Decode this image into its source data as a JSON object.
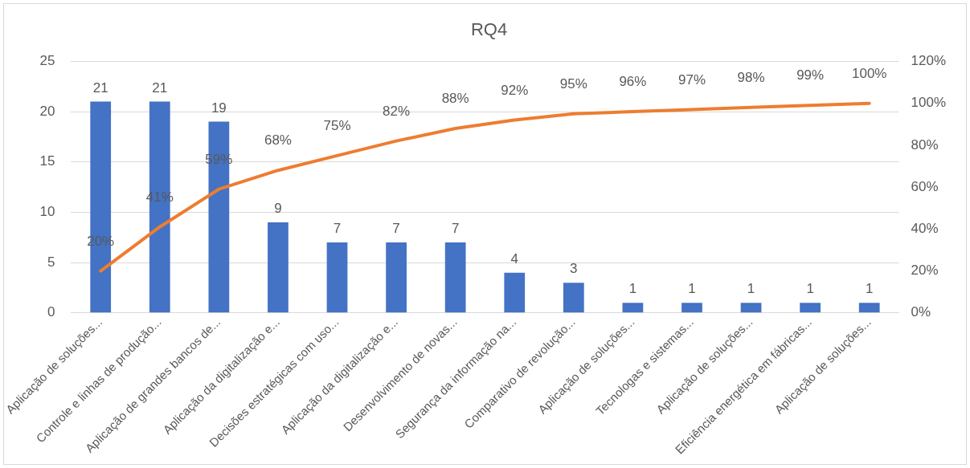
{
  "chart_data": {
    "type": "bar",
    "title": "RQ4",
    "categories": [
      "Aplicação de soluções...",
      "Controle e linhas de produção...",
      "Aplicação de grandes bancos de...",
      "Aplicação da digitalização e...",
      "Decisões estratégicas com uso...",
      "Aplicação da digitalização e...",
      "Desenvolvimento de novas...",
      "Segurança da informação na...",
      "Comparativo de revolução...",
      "Aplicação de soluções...",
      "Tecnologas e sistemas...",
      "Aplicação de soluções...",
      "Eficiência energética em fábricas...",
      "Aplicação de soluções..."
    ],
    "series": [
      {
        "color": "#4472c4",
        "values": [
          21,
          21,
          19,
          9,
          7,
          7,
          7,
          4,
          3,
          1,
          1,
          1,
          1,
          1
        ]
      },
      {
        "type": "line",
        "axis": "y2",
        "color": "#ed7d31",
        "values": [
          20,
          41,
          59,
          68,
          75,
          82,
          88,
          92,
          95,
          96,
          97,
          98,
          99,
          100
        ],
        "value_labels": [
          "20%",
          "41%",
          "59%",
          "68%",
          "75%",
          "82%",
          "88%",
          "92%",
          "95%",
          "96%",
          "97%",
          "98%",
          "99%",
          "100%"
        ]
      }
    ],
    "ylim": [
      0,
      25
    ],
    "yticks": [
      0,
      5,
      10,
      15,
      20,
      25
    ],
    "y2lim": [
      0,
      120
    ],
    "y2ticks": [
      {
        "value": 0,
        "label": "0%"
      },
      {
        "value": 20,
        "label": "20%"
      },
      {
        "value": 40,
        "label": "40%"
      },
      {
        "value": 60,
        "label": "60%"
      },
      {
        "value": 80,
        "label": "80%"
      },
      {
        "value": 100,
        "label": "100%"
      },
      {
        "value": 120,
        "label": "120%"
      }
    ],
    "grid": "y",
    "legend": false,
    "marker": "none",
    "line_style": "solid",
    "data_labels": true
  }
}
